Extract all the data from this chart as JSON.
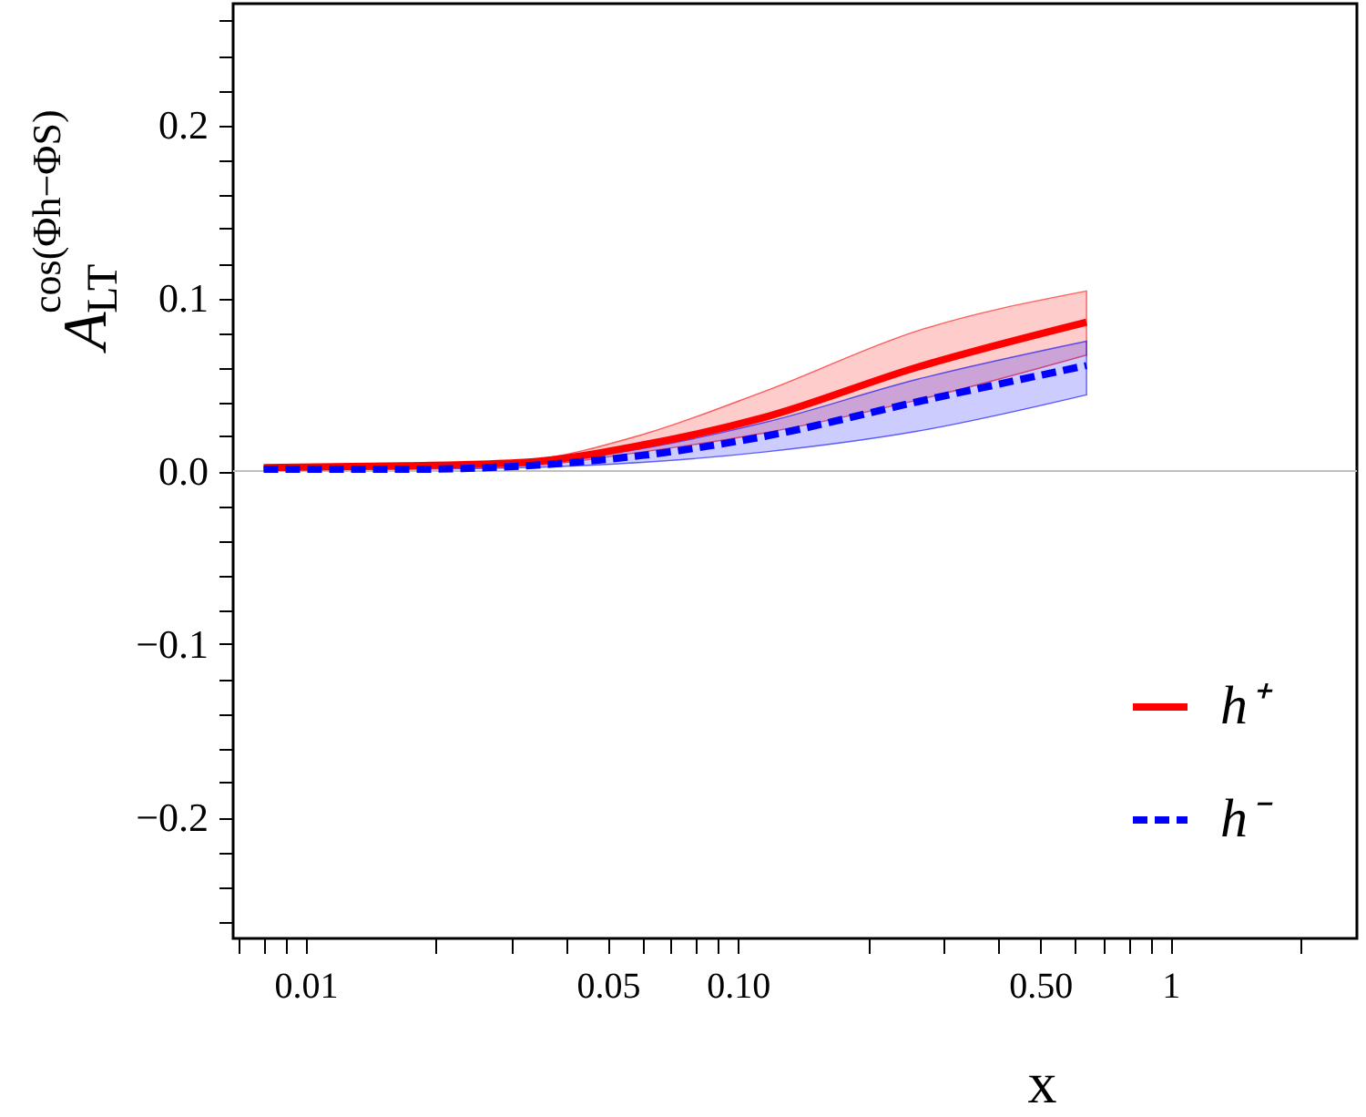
{
  "chart_data": {
    "type": "line",
    "xlabel": "x",
    "ylabel": "A$_{LT}$$^{cos(Φh−ΦS)}$",
    "log": "x",
    "grid": false,
    "legend": "bottom right",
    "x": [
      0.008,
      0.017,
      0.032,
      0.06,
      0.115,
      0.26,
      0.64
    ],
    "xlim": [
      0.0068,
      2.7
    ],
    "xticks": [
      {
        "value": 0.007,
        "label": null
      },
      {
        "value": 0.008,
        "label": null
      },
      {
        "value": 0.009,
        "label": null
      },
      {
        "value": 0.01,
        "label": "0.01"
      },
      {
        "value": 0.02,
        "label": null
      },
      {
        "value": 0.03,
        "label": null
      },
      {
        "value": 0.04,
        "label": null
      },
      0.05,
      {
        "value": 0.06,
        "label": null
      },
      {
        "value": 0.07,
        "label": null
      },
      {
        "value": 0.08,
        "label": null
      },
      {
        "value": 0.09,
        "label": null
      },
      {
        "value": 0.1,
        "label": "0.10"
      },
      {
        "value": 0.2,
        "label": null
      },
      {
        "value": 0.3,
        "label": null
      },
      {
        "value": 0.4,
        "label": null
      },
      {
        "value": 0.5,
        "label": "0.50"
      },
      {
        "value": 0.6,
        "label": null
      },
      {
        "value": 0.7,
        "label": null
      },
      {
        "value": 0.8,
        "label": null
      },
      {
        "value": 0.9,
        "label": null
      },
      1,
      {
        "value": 2,
        "label": null
      }
    ],
    "ylim": [
      -0.27,
      0.27
    ],
    "yticks": [
      {
        "value": -0.26,
        "label": null
      },
      {
        "value": -0.24,
        "label": null
      },
      {
        "value": -0.22,
        "label": null
      },
      {
        "value": -0.2,
        "label": "−0.2"
      },
      {
        "value": -0.18,
        "label": null
      },
      {
        "value": -0.16,
        "label": null
      },
      {
        "value": -0.14,
        "label": null
      },
      {
        "value": -0.12,
        "label": null
      },
      {
        "value": -0.1,
        "label": "−0.1"
      },
      {
        "value": -0.08,
        "label": null
      },
      {
        "value": -0.06,
        "label": null
      },
      {
        "value": -0.04,
        "label": null
      },
      {
        "value": -0.02,
        "label": null
      },
      {
        "value": 0,
        "label": "0.0"
      },
      {
        "value": 0.02,
        "label": null
      },
      {
        "value": 0.04,
        "label": null
      },
      {
        "value": 0.06,
        "label": null
      },
      {
        "value": 0.08,
        "label": null
      },
      {
        "value": 0.1,
        "label": "0.1"
      },
      {
        "value": 0.12,
        "label": null
      },
      {
        "value": 0.14,
        "label": null
      },
      {
        "value": 0.16,
        "label": null
      },
      {
        "value": 0.18,
        "label": null
      },
      {
        "value": 0.2,
        "label": "0.2"
      },
      {
        "value": 0.22,
        "label": null
      },
      {
        "value": 0.24,
        "label": null
      },
      {
        "value": 0.26,
        "label": null
      }
    ],
    "ref_lines": [
      {
        "axis": "y",
        "value": 0,
        "color": "#c0c0c0",
        "line_style": "solid"
      }
    ],
    "series": [
      {
        "name": "h⁺",
        "color": "#ff0000",
        "line_style": "solid",
        "values": [
          0.002,
          0.003,
          0.005,
          0.015,
          0.031,
          0.06,
          0.086
        ],
        "lower": [
          0.002,
          0.002,
          0.003,
          0.011,
          0.022,
          0.041,
          0.067
        ],
        "upper": [
          0.002,
          0.003,
          0.006,
          0.021,
          0.046,
          0.081,
          0.104
        ]
      },
      {
        "name": "h⁻",
        "color": "#0000ff",
        "line_style": "dashed",
        "values": [
          0.001,
          0.001,
          0.003,
          0.009,
          0.02,
          0.04,
          0.061
        ],
        "lower": [
          0.001,
          0.001,
          0.002,
          0.005,
          0.011,
          0.023,
          0.044
        ],
        "upper": [
          0.001,
          0.002,
          0.004,
          0.013,
          0.028,
          0.053,
          0.075
        ]
      }
    ]
  }
}
